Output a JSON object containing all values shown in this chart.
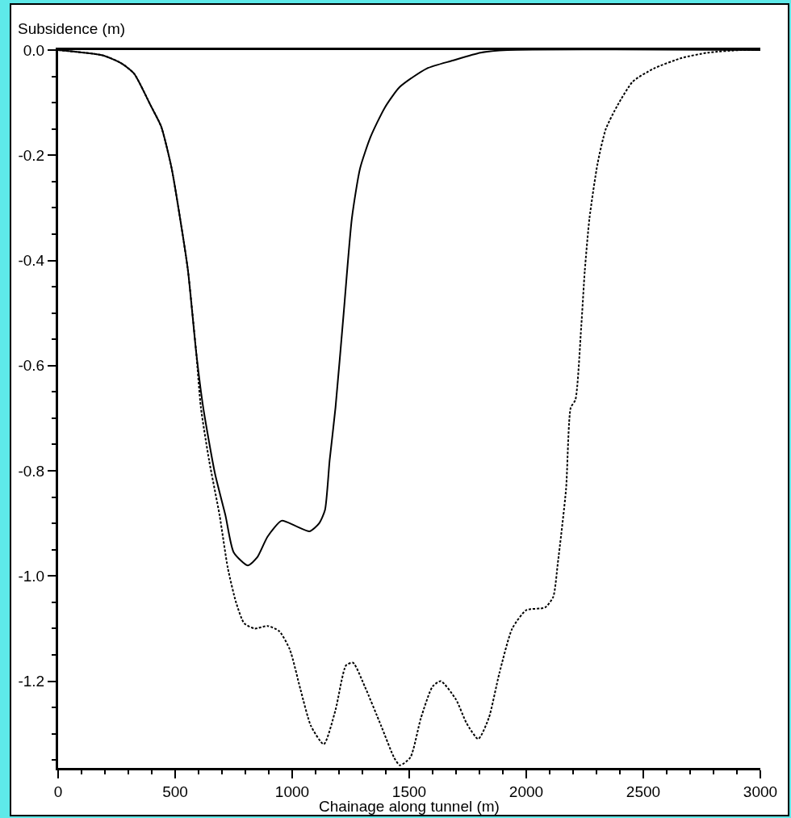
{
  "chart_data": {
    "type": "line",
    "xlabel": "Chainage along tunnel (m)",
    "ylabel": "Subsidence (m)",
    "xlim": [
      0,
      3000
    ],
    "ylim": [
      -1.365,
      0
    ],
    "xticks": [
      0,
      {
        "value": 100,
        "label": null
      },
      {
        "value": 200,
        "label": null
      },
      {
        "value": 300,
        "label": null
      },
      {
        "value": 400,
        "label": null
      },
      500,
      {
        "value": 600,
        "label": null
      },
      {
        "value": 700,
        "label": null
      },
      {
        "value": 800,
        "label": null
      },
      {
        "value": 900,
        "label": null
      },
      1000,
      {
        "value": 1100,
        "label": null
      },
      {
        "value": 1200,
        "label": null
      },
      {
        "value": 1300,
        "label": null
      },
      {
        "value": 1400,
        "label": null
      },
      1500,
      {
        "value": 1600,
        "label": null
      },
      {
        "value": 1700,
        "label": null
      },
      {
        "value": 1800,
        "label": null
      },
      {
        "value": 1900,
        "label": null
      },
      2000,
      {
        "value": 2100,
        "label": null
      },
      {
        "value": 2200,
        "label": null
      },
      {
        "value": 2300,
        "label": null
      },
      {
        "value": 2400,
        "label": null
      },
      2500,
      {
        "value": 2600,
        "label": null
      },
      {
        "value": 2700,
        "label": null
      },
      {
        "value": 2800,
        "label": null
      },
      {
        "value": 2900,
        "label": null
      },
      3000
    ],
    "yticks": [
      {
        "value": 0,
        "label": "0.0"
      },
      {
        "value": -0.05,
        "label": null
      },
      {
        "value": -0.1,
        "label": null
      },
      {
        "value": -0.15,
        "label": null
      },
      {
        "value": -0.2,
        "label": "-0.2"
      },
      {
        "value": -0.25,
        "label": null
      },
      {
        "value": -0.3,
        "label": null
      },
      {
        "value": -0.35,
        "label": null
      },
      {
        "value": -0.4,
        "label": "-0.4"
      },
      {
        "value": -0.45,
        "label": null
      },
      {
        "value": -0.5,
        "label": null
      },
      {
        "value": -0.55,
        "label": null
      },
      {
        "value": -0.6,
        "label": "-0.6"
      },
      {
        "value": -0.65,
        "label": null
      },
      {
        "value": -0.7,
        "label": null
      },
      {
        "value": -0.75,
        "label": null
      },
      {
        "value": -0.8,
        "label": "-0.8"
      },
      {
        "value": -0.85,
        "label": null
      },
      {
        "value": -0.9,
        "label": null
      },
      {
        "value": -0.95,
        "label": null
      },
      {
        "value": -1.0,
        "label": "-1.0"
      },
      {
        "value": -1.05,
        "label": null
      },
      {
        "value": -1.1,
        "label": null
      },
      {
        "value": -1.15,
        "label": null
      },
      {
        "value": -1.2,
        "label": "-1.2"
      },
      {
        "value": -1.25,
        "label": null
      },
      {
        "value": -1.3,
        "label": null
      },
      {
        "value": -1.35,
        "label": null
      }
    ],
    "grid": false,
    "marker": "none",
    "series": [
      {
        "color": "#000000",
        "line_style": "solid",
        "x": [
          0,
          190,
          270,
          325,
          395,
          440,
          485,
          530,
          555,
          590,
          620,
          670,
          715,
          750,
          810,
          850,
          895,
          955,
          1015,
          1075,
          1115,
          1140,
          1160,
          1185,
          1220,
          1255,
          1290,
          1335,
          1395,
          1460,
          1575,
          1685,
          1805,
          1920,
          3000
        ],
        "values": [
          0,
          -0.01,
          -0.025,
          -0.045,
          -0.105,
          -0.145,
          -0.225,
          -0.345,
          -0.42,
          -0.575,
          -0.68,
          -0.805,
          -0.885,
          -0.955,
          -0.98,
          -0.965,
          -0.925,
          -0.895,
          -0.905,
          -0.915,
          -0.9,
          -0.875,
          -0.78,
          -0.68,
          -0.5,
          -0.32,
          -0.225,
          -0.165,
          -0.11,
          -0.07,
          -0.035,
          -0.02,
          -0.005,
          0,
          0
        ]
      },
      {
        "color": "#000000",
        "line_style": "dashed",
        "x": [
          0,
          190,
          270,
          325,
          395,
          440,
          485,
          530,
          555,
          590,
          610,
          645,
          690,
          725,
          760,
          795,
          840,
          895,
          945,
          990,
          1035,
          1080,
          1135,
          1185,
          1230,
          1260,
          1310,
          1380,
          1435,
          1460,
          1505,
          1550,
          1600,
          1635,
          1700,
          1745,
          1795,
          1840,
          1885,
          1940,
          2000,
          2080,
          2115,
          2135,
          2170,
          2190,
          2210,
          2235,
          2250,
          2270,
          2305,
          2340,
          2390,
          2455,
          2545,
          2665,
          2775,
          2915,
          3000
        ],
        "values": [
          0,
          -0.01,
          -0.025,
          -0.045,
          -0.105,
          -0.145,
          -0.225,
          -0.345,
          -0.42,
          -0.575,
          -0.68,
          -0.78,
          -0.885,
          -0.985,
          -1.05,
          -1.09,
          -1.1,
          -1.095,
          -1.105,
          -1.14,
          -1.215,
          -1.285,
          -1.32,
          -1.255,
          -1.17,
          -1.165,
          -1.21,
          -1.285,
          -1.345,
          -1.36,
          -1.345,
          -1.27,
          -1.21,
          -1.2,
          -1.235,
          -1.28,
          -1.31,
          -1.27,
          -1.185,
          -1.1,
          -1.065,
          -1.06,
          -1.04,
          -0.975,
          -0.835,
          -0.68,
          -0.665,
          -0.525,
          -0.42,
          -0.32,
          -0.215,
          -0.15,
          -0.105,
          -0.06,
          -0.035,
          -0.015,
          -0.005,
          0,
          0
        ]
      }
    ]
  }
}
